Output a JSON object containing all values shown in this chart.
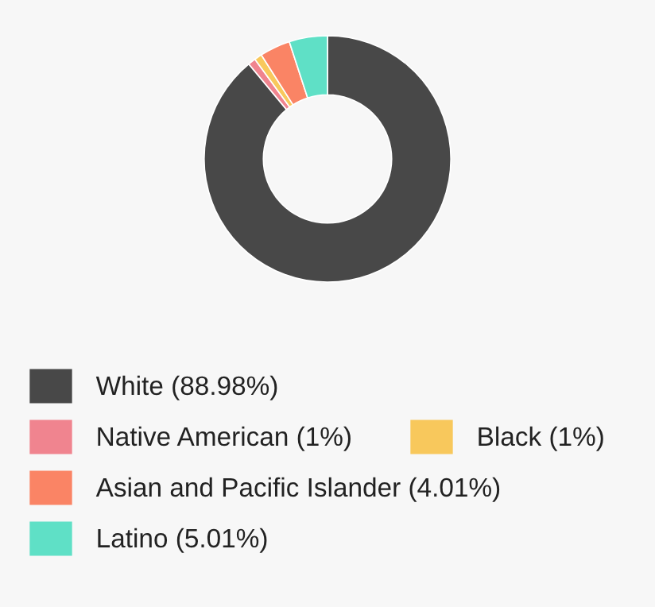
{
  "chart_data": {
    "type": "donut",
    "categories": [
      "White (88.98%)",
      "Native American (1%)",
      "Black (1%)",
      "Asian and Pacific Islander (4.01%)",
      "Latino (5.01%)"
    ],
    "values": [
      88.98,
      1,
      1,
      4.01,
      5.01
    ],
    "colors": [
      "#484848",
      "#f0848f",
      "#f8c85c",
      "#fa8465",
      "#5fe0c6"
    ],
    "legend": "bottom"
  }
}
